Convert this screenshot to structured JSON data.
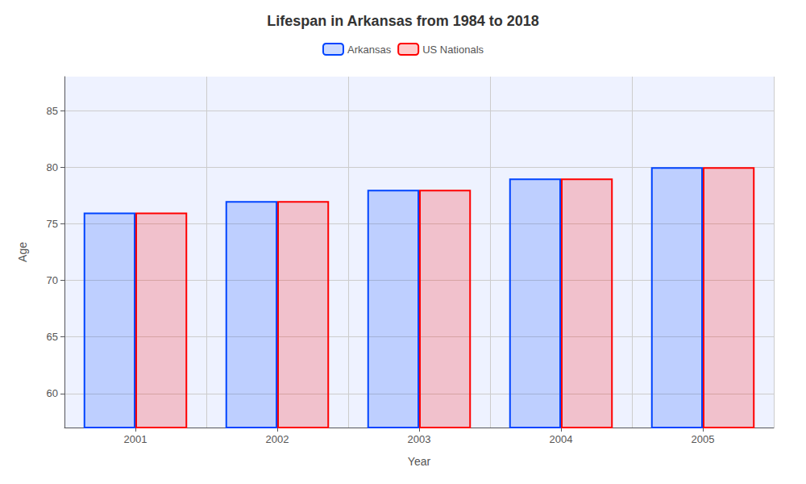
{
  "chart_data": {
    "type": "bar",
    "title": "Lifespan in Arkansas from 1984 to 2018",
    "xlabel": "Year",
    "ylabel": "Age",
    "categories": [
      "2001",
      "2002",
      "2003",
      "2004",
      "2005"
    ],
    "series": [
      {
        "name": "Arkansas",
        "color": "#0044ff",
        "values": [
          76.0,
          77.0,
          78.0,
          79.0,
          80.0
        ]
      },
      {
        "name": "US Nationals",
        "color": "#ff0000",
        "values": [
          76.0,
          77.0,
          78.0,
          79.0,
          80.0
        ]
      }
    ],
    "ylim": [
      57,
      88
    ],
    "yticks": [
      60,
      65,
      70,
      75,
      80,
      85
    ],
    "grid": true,
    "legend": "top"
  }
}
